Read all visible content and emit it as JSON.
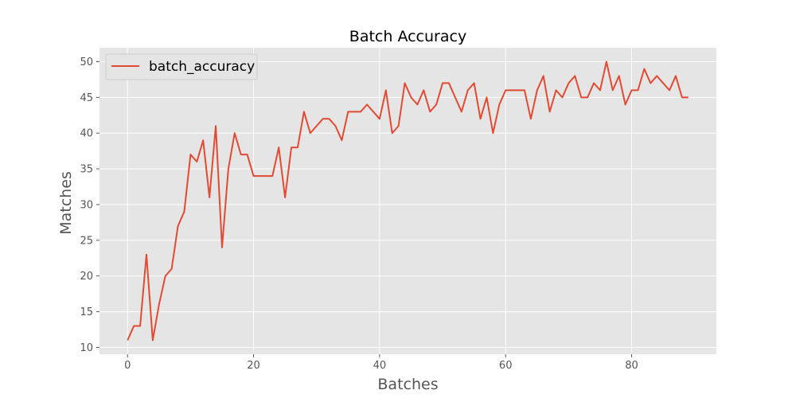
{
  "chart_data": {
    "type": "line",
    "title": "Batch Accuracy",
    "xlabel": "Batches",
    "ylabel": "Matches",
    "xlim": [
      -4.45,
      93.45
    ],
    "ylim": [
      9.05,
      51.95
    ],
    "xticks": [
      0,
      20,
      40,
      60,
      80
    ],
    "yticks": [
      10,
      15,
      20,
      25,
      30,
      35,
      40,
      45,
      50
    ],
    "grid": true,
    "legend_position": "upper-left",
    "series": [
      {
        "name": "batch_accuracy",
        "color": "#E24A33",
        "x": [
          0,
          1,
          2,
          3,
          4,
          5,
          6,
          7,
          8,
          9,
          10,
          11,
          12,
          13,
          14,
          15,
          16,
          17,
          18,
          19,
          20,
          21,
          22,
          23,
          24,
          25,
          26,
          27,
          28,
          29,
          30,
          31,
          32,
          33,
          34,
          35,
          36,
          37,
          38,
          39,
          40,
          41,
          42,
          43,
          44,
          45,
          46,
          47,
          48,
          49,
          50,
          51,
          52,
          53,
          54,
          55,
          56,
          57,
          58,
          59,
          60,
          61,
          62,
          63,
          64,
          65,
          66,
          67,
          68,
          69,
          70,
          71,
          72,
          73,
          74,
          75,
          76,
          77,
          78,
          79,
          80,
          81,
          82,
          83,
          84,
          85,
          86,
          87,
          88,
          89
        ],
        "values": [
          11,
          13,
          13,
          23,
          11,
          16,
          20,
          21,
          27,
          29,
          37,
          36,
          39,
          31,
          41,
          24,
          35,
          40,
          37,
          37,
          34,
          34,
          34,
          34,
          38,
          31,
          38,
          38,
          43,
          40,
          41,
          42,
          42,
          41,
          39,
          43,
          43,
          43,
          44,
          43,
          42,
          46,
          40,
          41,
          47,
          45,
          44,
          46,
          43,
          44,
          47,
          47,
          45,
          43,
          46,
          47,
          42,
          45,
          40,
          44,
          46,
          46,
          46,
          46,
          42,
          46,
          48,
          43,
          46,
          45,
          47,
          48,
          45,
          45,
          47,
          46,
          50,
          46,
          48,
          44,
          46,
          46,
          49,
          47,
          48,
          47,
          46,
          48,
          45,
          45
        ]
      }
    ]
  }
}
